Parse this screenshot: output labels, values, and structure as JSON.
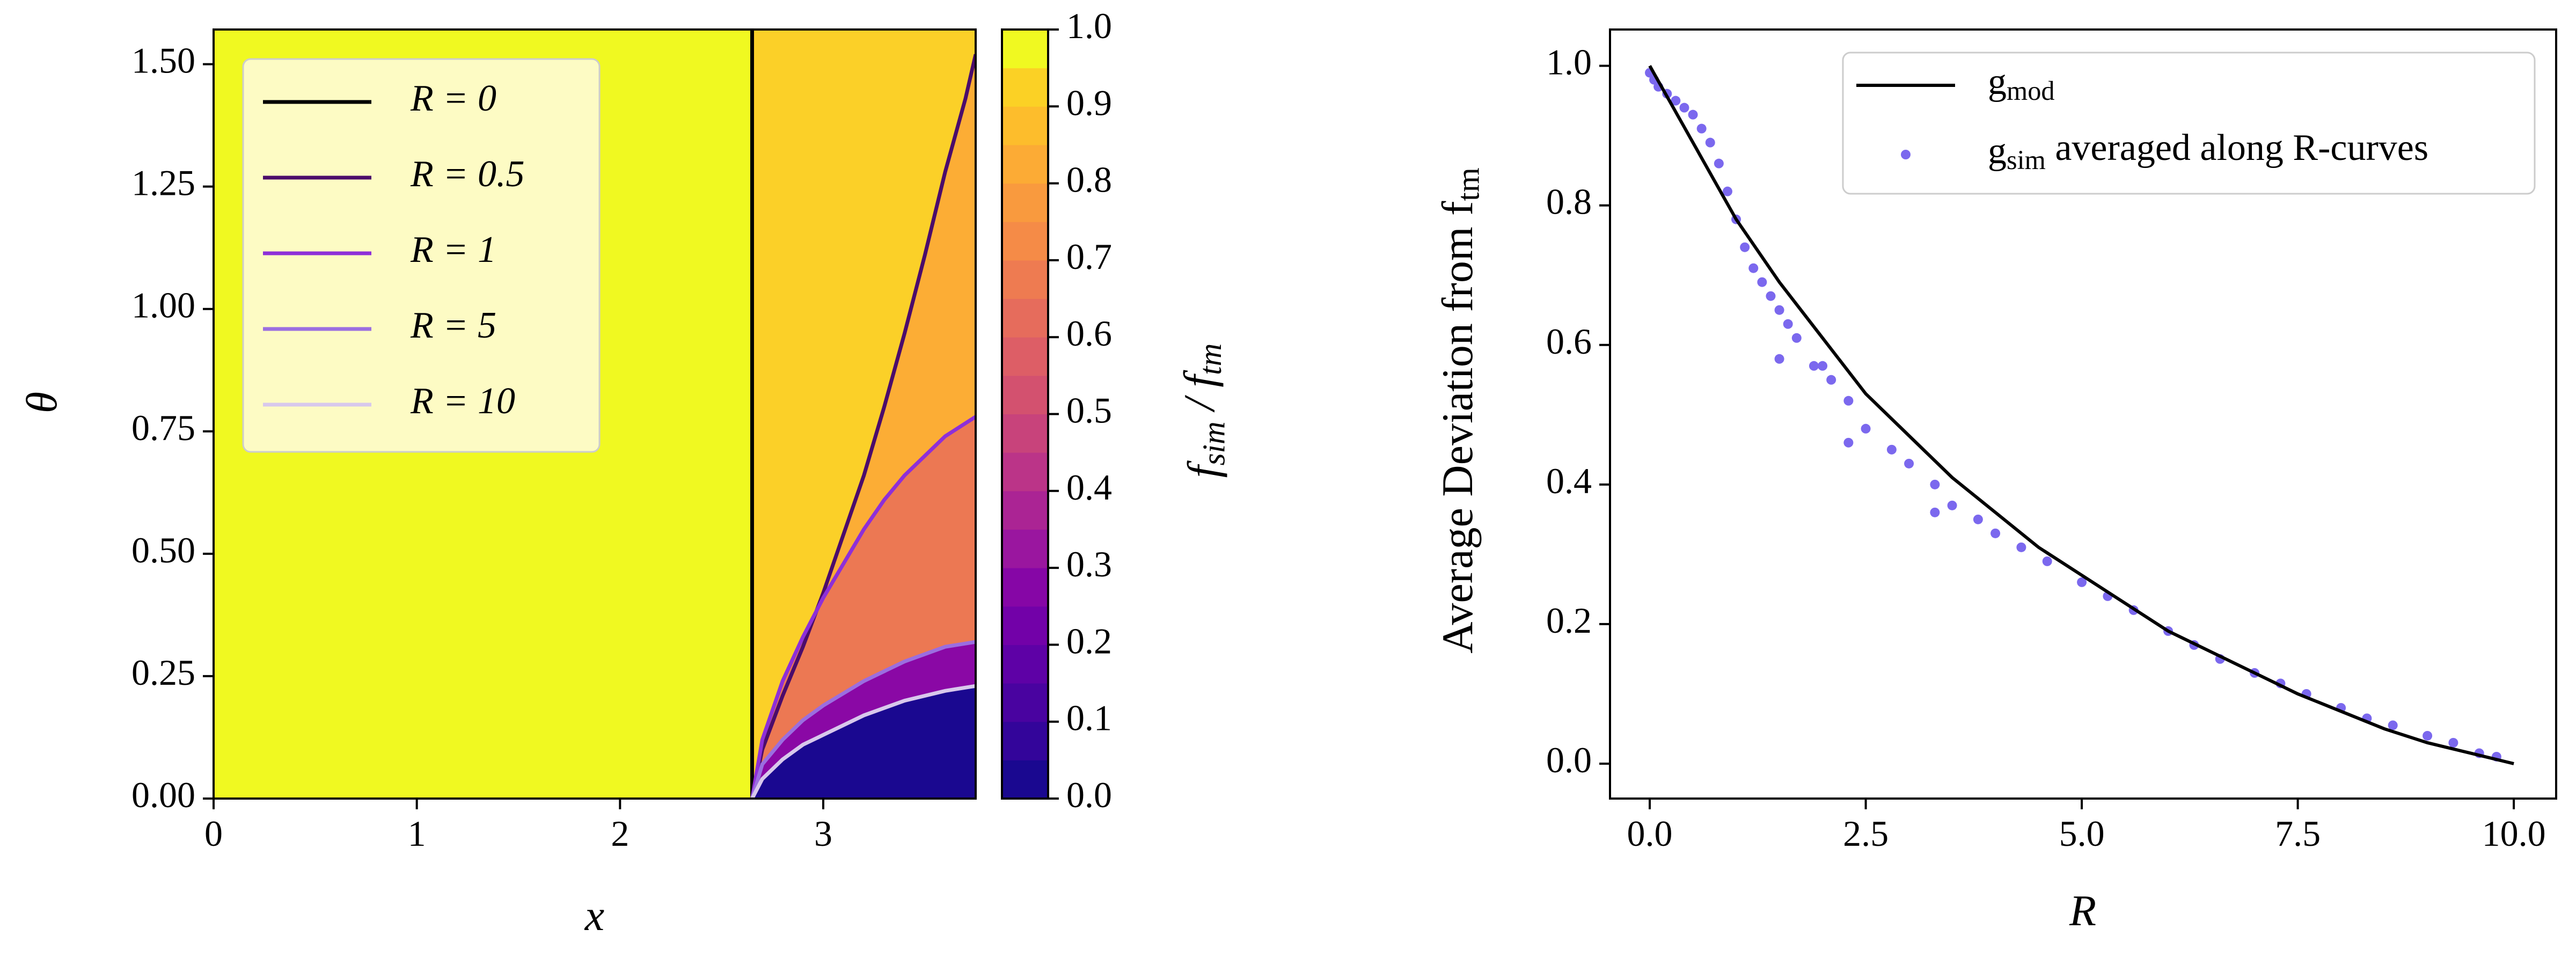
{
  "chart_data": [
    {
      "type": "contour",
      "x_label": "x",
      "y_label": "θ",
      "xlim": [
        0,
        3.75
      ],
      "ylim": [
        0,
        1.5708
      ],
      "xticks": [
        0,
        1,
        2,
        3
      ],
      "yticks": [
        {
          "value": 0,
          "label": "0.00"
        },
        {
          "value": 0.25,
          "label": "0.25"
        },
        {
          "value": 0.5,
          "label": "0.50"
        },
        {
          "value": 0.75,
          "label": "0.75"
        },
        {
          "value": 1.0,
          "label": "1.00"
        },
        {
          "value": 1.25,
          "label": "1.25"
        },
        {
          "value": 1.5,
          "label": "1.50"
        }
      ],
      "background": "#f0f921",
      "legend": "upper left",
      "series": [
        {
          "name": "R = 0",
          "color": "#000000",
          "fill": "#fbd028",
          "x": [
            2.65,
            2.65
          ],
          "values": [
            0,
            1.5708
          ]
        },
        {
          "name": "R = 0.5",
          "color": "#4b0c6b",
          "fill": "#fcad35",
          "x": [
            2.65,
            2.7,
            2.8,
            2.9,
            3.0,
            3.1,
            3.2,
            3.3,
            3.4,
            3.5,
            3.6,
            3.7,
            3.75
          ],
          "values": [
            0,
            0.1,
            0.21,
            0.31,
            0.42,
            0.54,
            0.66,
            0.8,
            0.95,
            1.11,
            1.28,
            1.43,
            1.52
          ]
        },
        {
          "name": "R = 1",
          "color": "#8e2fd8",
          "fill": "#ec7853",
          "x": [
            2.65,
            2.7,
            2.8,
            2.9,
            3.0,
            3.1,
            3.2,
            3.3,
            3.4,
            3.5,
            3.6,
            3.75
          ],
          "values": [
            0,
            0.12,
            0.24,
            0.33,
            0.41,
            0.48,
            0.55,
            0.61,
            0.66,
            0.7,
            0.74,
            0.78
          ]
        },
        {
          "name": "R = 5",
          "color": "#9b6ee0",
          "fill": "#8a08a5",
          "x": [
            2.65,
            2.7,
            2.8,
            2.9,
            3.0,
            3.2,
            3.4,
            3.6,
            3.75
          ],
          "values": [
            0,
            0.07,
            0.12,
            0.16,
            0.19,
            0.24,
            0.28,
            0.31,
            0.32
          ]
        },
        {
          "name": "R = 10",
          "color": "#d8c8ec",
          "fill": "#1a0890",
          "x": [
            2.65,
            2.7,
            2.8,
            2.9,
            3.0,
            3.2,
            3.4,
            3.6,
            3.75
          ],
          "values": [
            0,
            0.04,
            0.08,
            0.11,
            0.13,
            0.17,
            0.2,
            0.22,
            0.23
          ]
        }
      ],
      "colorbar": {
        "label": "f_sim / f_tm",
        "levels": [
          0,
          0.05,
          0.1,
          0.15,
          0.2,
          0.25,
          0.3,
          0.35,
          0.4,
          0.45,
          0.5,
          0.55,
          0.6,
          0.65,
          0.7,
          0.75,
          0.8,
          0.85,
          0.9,
          0.95,
          1.0
        ],
        "colors": [
          "#1a0890",
          "#33059a",
          "#4903a0",
          "#5e01a6",
          "#7201a8",
          "#8606a6",
          "#9a169f",
          "#ab2494",
          "#bb3488",
          "#c8437b",
          "#d3516f",
          "#dd5e66",
          "#e66c5c",
          "#ee7b51",
          "#f58b47",
          "#f99a3e",
          "#fcab35",
          "#fdbd2c",
          "#fbd125",
          "#f0f921"
        ],
        "ticks": [
          {
            "value": 0,
            "label": "0.0"
          },
          {
            "value": 0.1,
            "label": "0.1"
          },
          {
            "value": 0.2,
            "label": "0.2"
          },
          {
            "value": 0.3,
            "label": "0.3"
          },
          {
            "value": 0.4,
            "label": "0.4"
          },
          {
            "value": 0.5,
            "label": "0.5"
          },
          {
            "value": 0.6,
            "label": "0.6"
          },
          {
            "value": 0.7,
            "label": "0.7"
          },
          {
            "value": 0.8,
            "label": "0.8"
          },
          {
            "value": 0.9,
            "label": "0.9"
          },
          {
            "value": 1.0,
            "label": "1.0"
          }
        ]
      }
    },
    {
      "type": "line",
      "x_label": "R",
      "y_label": "Average Deviation from f_tm",
      "xlim": [
        -0.46,
        10.49
      ],
      "ylim": [
        -0.05,
        1.052
      ],
      "xticks": [
        {
          "value": 0,
          "label": "0.0"
        },
        {
          "value": 2.5,
          "label": "2.5"
        },
        {
          "value": 5,
          "label": "5.0"
        },
        {
          "value": 7.5,
          "label": "7.5"
        },
        {
          "value": 10,
          "label": "10.0"
        }
      ],
      "yticks": [
        {
          "value": 0,
          "label": "0.0"
        },
        {
          "value": 0.2,
          "label": "0.2"
        },
        {
          "value": 0.4,
          "label": "0.4"
        },
        {
          "value": 0.6,
          "label": "0.6"
        },
        {
          "value": 0.8,
          "label": "0.8"
        },
        {
          "value": 1.0,
          "label": "1.0"
        }
      ],
      "legend": "upper right",
      "series": [
        {
          "name": "g_mod",
          "style": "line",
          "color": "#000000",
          "x": [
            0,
            0.5,
            1,
            1.5,
            2,
            2.5,
            3,
            3.5,
            4,
            4.5,
            5,
            5.5,
            6,
            6.5,
            7,
            7.5,
            8,
            8.5,
            9,
            9.5,
            10
          ],
          "values": [
            1.0,
            0.89,
            0.78,
            0.69,
            0.61,
            0.53,
            0.47,
            0.41,
            0.36,
            0.31,
            0.27,
            0.23,
            0.19,
            0.16,
            0.13,
            0.1,
            0.075,
            0.05,
            0.03,
            0.015,
            0.0
          ]
        },
        {
          "name": "g_sim averaged along R-curves",
          "style": "scatter",
          "color": "#7b68ee",
          "x": [
            0,
            0.05,
            0.1,
            0.2,
            0.3,
            0.4,
            0.5,
            0.6,
            0.7,
            0.8,
            0.9,
            1.0,
            1.1,
            1.2,
            1.3,
            1.4,
            1.5,
            1.5,
            1.6,
            1.7,
            1.9,
            2.0,
            2.1,
            2.3,
            2.3,
            2.5,
            2.8,
            3.0,
            3.3,
            3.3,
            3.5,
            3.8,
            4.0,
            4.3,
            4.6,
            5.0,
            5.3,
            5.6,
            6.0,
            6.3,
            6.6,
            7.0,
            7.3,
            7.6,
            8.0,
            8.3,
            8.6,
            9.0,
            9.3,
            9.6,
            9.8
          ],
          "values": [
            0.99,
            0.98,
            0.97,
            0.96,
            0.95,
            0.94,
            0.93,
            0.91,
            0.89,
            0.86,
            0.82,
            0.78,
            0.74,
            0.71,
            0.69,
            0.67,
            0.65,
            0.58,
            0.63,
            0.61,
            0.57,
            0.57,
            0.55,
            0.52,
            0.46,
            0.48,
            0.45,
            0.43,
            0.4,
            0.36,
            0.37,
            0.35,
            0.33,
            0.31,
            0.29,
            0.26,
            0.24,
            0.22,
            0.19,
            0.17,
            0.15,
            0.13,
            0.115,
            0.1,
            0.08,
            0.065,
            0.055,
            0.04,
            0.03,
            0.015,
            0.01
          ]
        }
      ]
    }
  ]
}
